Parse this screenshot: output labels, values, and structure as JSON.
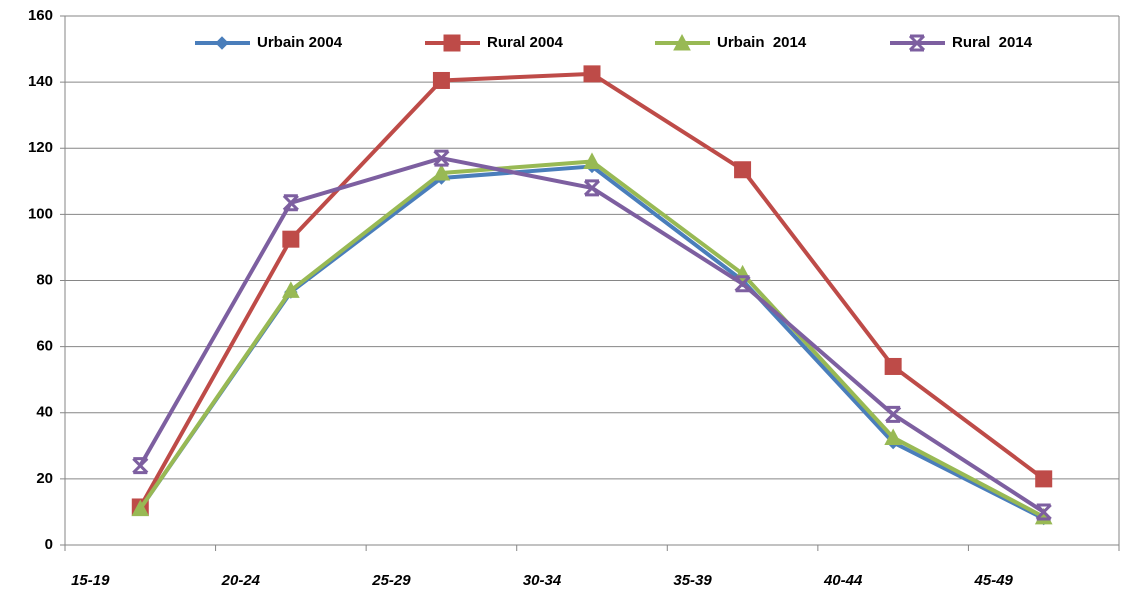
{
  "chart_data": {
    "type": "line",
    "categories": [
      "15-19",
      "20-24",
      "25-29",
      "30-34",
      "35-39",
      "40-44",
      "45-49"
    ],
    "series": [
      {
        "name": "Urbain 2004",
        "color": "#4a7ebb",
        "marker": "diamond",
        "values": [
          11,
          76.5,
          111,
          114.5,
          80,
          31,
          8
        ]
      },
      {
        "name": "Rural 2004",
        "color": "#be4b48",
        "marker": "square",
        "values": [
          11.5,
          92.5,
          140.5,
          142.5,
          113.5,
          54,
          20
        ]
      },
      {
        "name": "Urbain  2014",
        "color": "#98b954",
        "marker": "triangle",
        "values": [
          11,
          77,
          112.5,
          116,
          82,
          32.5,
          8.5
        ]
      },
      {
        "name": "Rural  2014",
        "color": "#7d5fa0",
        "marker": "star",
        "values": [
          24,
          103.5,
          117,
          108,
          79,
          39.5,
          10
        ]
      }
    ],
    "ylim": [
      0,
      160
    ],
    "yticks": [
      0,
      20,
      40,
      60,
      80,
      100,
      120,
      140,
      160
    ],
    "grid": true,
    "legend": "top"
  }
}
